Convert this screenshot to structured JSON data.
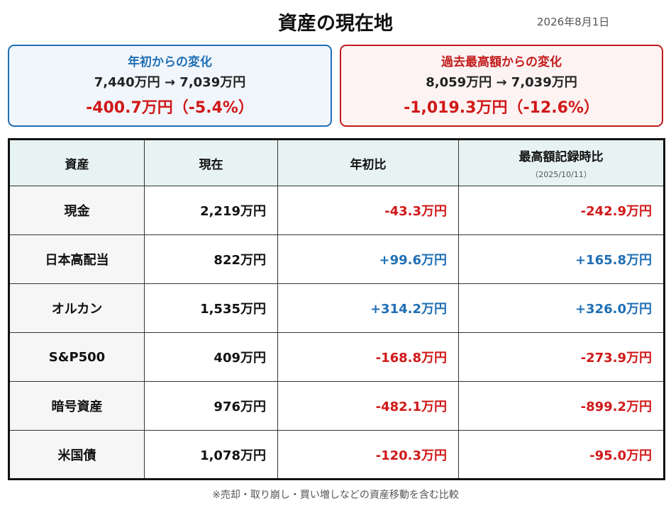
{
  "header": {
    "title": "資産の現在地",
    "date": "2026年8月1日"
  },
  "cards": [
    {
      "title": "年初からの変化",
      "range": "7,440万円 → 7,039万円",
      "change": "-400.7万円（-5.4%）",
      "accent": "#1f6fb5"
    },
    {
      "title": "過去最高額からの変化",
      "range": "8,059万円 → 7,039万円",
      "change": "-1,019.3万円（-12.6%）",
      "accent": "#c21b1b"
    }
  ],
  "table": {
    "headers": {
      "asset": "資産",
      "current": "現在",
      "ytd": "年初比",
      "peak": "最高額記録時比",
      "peak_date": "（2025/10/11）"
    },
    "rows": [
      {
        "asset": "現金",
        "current": "2,219万円",
        "ytd": "-43.3万円",
        "peak": "-242.9万円"
      },
      {
        "asset": "日本高配当",
        "current": "822万円",
        "ytd": "+99.6万円",
        "peak": "+165.8万円"
      },
      {
        "asset": "オルカン",
        "current": "1,535万円",
        "ytd": "+314.2万円",
        "peak": "+326.0万円"
      },
      {
        "asset": "S&P500",
        "current": "409万円",
        "ytd": "-168.8万円",
        "peak": "-273.9万円"
      },
      {
        "asset": "暗号資産",
        "current": "976万円",
        "ytd": "-482.1万円",
        "peak": "-899.2万円"
      },
      {
        "asset": "米国債",
        "current": "1,078万円",
        "ytd": "-120.3万円",
        "peak": "-95.0万円"
      }
    ]
  },
  "footnote": "※売却・取り崩し・買い増しなどの資産移動を含む比較",
  "colors": {
    "positive": "#1f6fb5",
    "negative": "#d01818",
    "header_bg": "#e7f2f2"
  }
}
